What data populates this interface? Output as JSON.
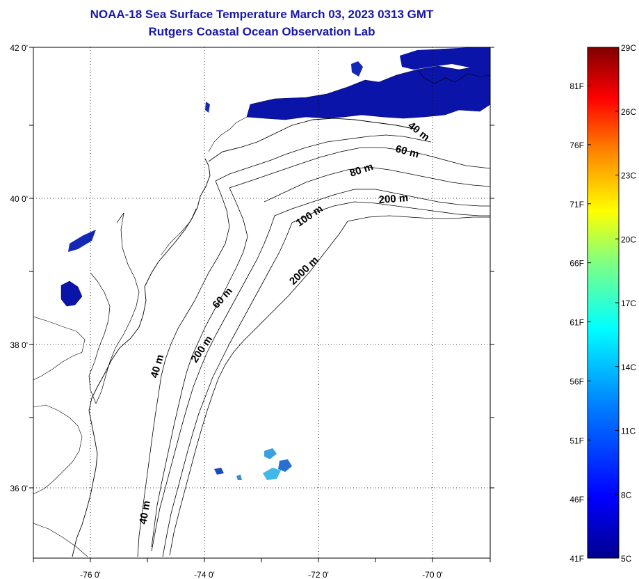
{
  "title_line1": "NOAA-18 Sea Surface Temperature March 03, 2023 0313 GMT",
  "title_line2": "Rutgers Coastal Ocean Observation Lab",
  "map": {
    "lon_range": [
      -77.0,
      -69.0
    ],
    "lat_range": [
      35.0,
      42.0
    ],
    "lon_ticks": [
      {
        "value": -76,
        "label": "-76 0'"
      },
      {
        "value": -74,
        "label": "-74 0'"
      },
      {
        "value": -72,
        "label": "-72 0'"
      },
      {
        "value": -70,
        "label": "-70 0'"
      }
    ],
    "lat_ticks": [
      {
        "value": 42,
        "label": "42 0'"
      },
      {
        "value": 40,
        "label": "40 0'"
      },
      {
        "value": 38,
        "label": "38 0'"
      },
      {
        "value": 36,
        "label": "36 0'"
      }
    ],
    "grid": "dotted",
    "contour_labels": [
      "40 m",
      "60 m",
      "80 m",
      "200 m",
      "100 m",
      "2000 m",
      "60 m",
      "200 m",
      "40 m",
      "40 m"
    ]
  },
  "colorbar": {
    "celsius_labels": [
      "29C",
      "26C",
      "23C",
      "20C",
      "17C",
      "14C",
      "11C",
      "8C",
      "5C"
    ],
    "fahrenheit_labels": [
      "81F",
      "76F",
      "71F",
      "66F",
      "61F",
      "56F",
      "51F",
      "46F",
      "41F"
    ],
    "colors": [
      "#800000",
      "#ff0000",
      "#ff8000",
      "#ffff00",
      "#80ff80",
      "#00ffff",
      "#0080ff",
      "#0000ff",
      "#00008f"
    ]
  },
  "colors": {
    "title": "#1818a8",
    "cold_water": "#0a14a8"
  }
}
